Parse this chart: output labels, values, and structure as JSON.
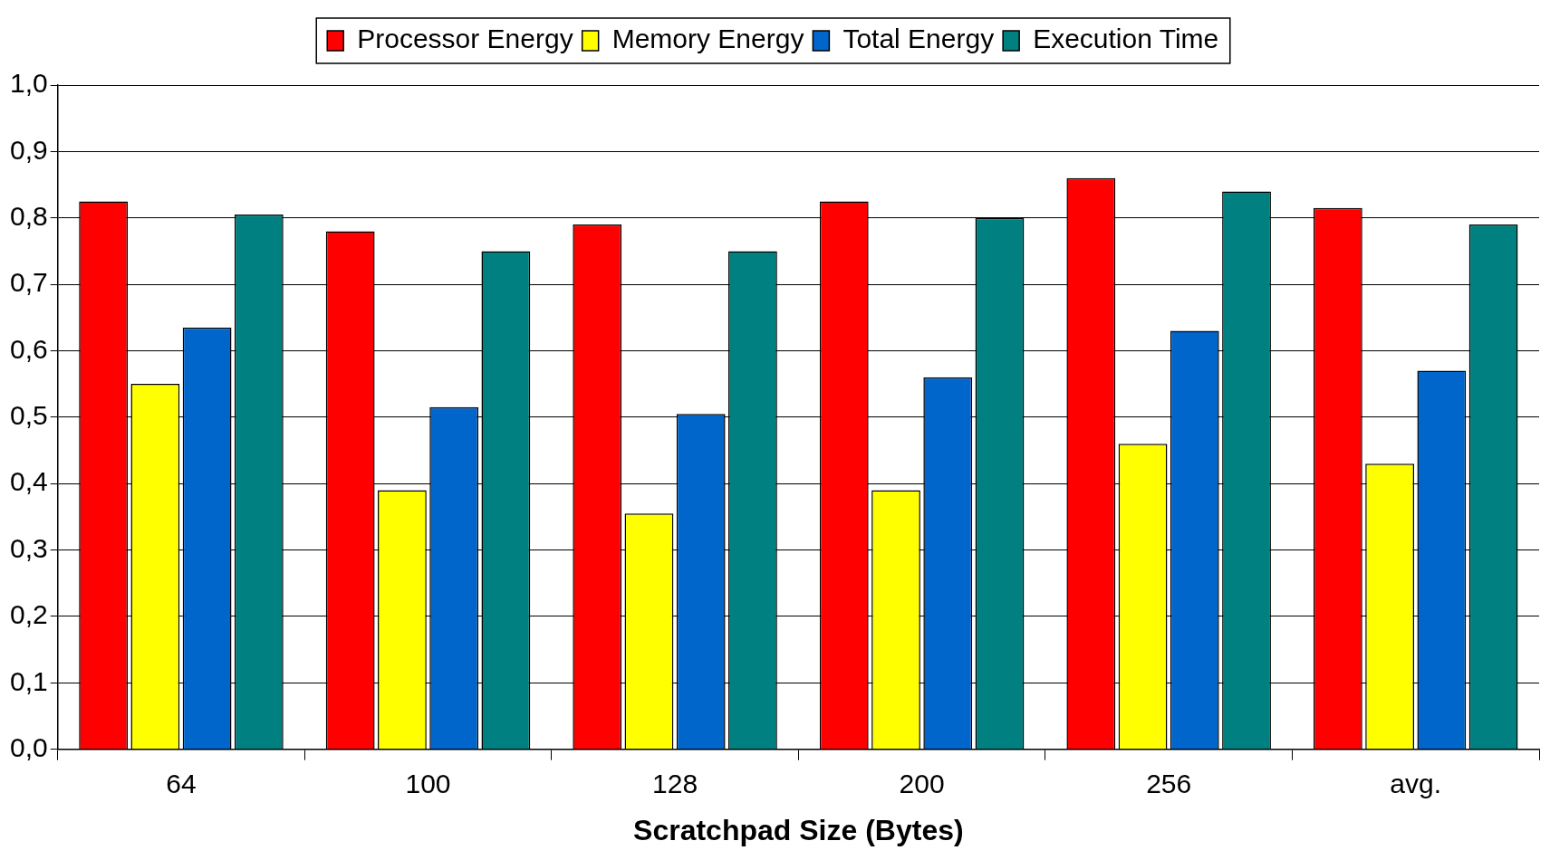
{
  "chart_data": {
    "type": "bar",
    "xlabel": "Scratchpad Size (Bytes)",
    "categories": [
      "64",
      "100",
      "128",
      "200",
      "256",
      "avg."
    ],
    "series": [
      {
        "name": "Processor Energy",
        "color": "#ff0000",
        "values": [
          0.825,
          0.78,
          0.79,
          0.825,
          0.86,
          0.815
        ]
      },
      {
        "name": "Memory Energy",
        "color": "#ffff00",
        "values": [
          0.55,
          0.39,
          0.355,
          0.39,
          0.46,
          0.43
        ]
      },
      {
        "name": "Total Energy",
        "color": "#0066cc",
        "values": [
          0.635,
          0.515,
          0.505,
          0.56,
          0.63,
          0.57
        ]
      },
      {
        "name": "Execution Time",
        "color": "#008080",
        "values": [
          0.805,
          0.75,
          0.75,
          0.8,
          0.84,
          0.79
        ]
      }
    ],
    "ylim": [
      0,
      1
    ],
    "yticks": [
      {
        "value": 0,
        "label": "0,0"
      },
      {
        "value": 0.1,
        "label": "0,1"
      },
      {
        "value": 0.2,
        "label": "0,2"
      },
      {
        "value": 0.3,
        "label": "0,3"
      },
      {
        "value": 0.4,
        "label": "0,4"
      },
      {
        "value": 0.5,
        "label": "0,5"
      },
      {
        "value": 0.6,
        "label": "0,6"
      },
      {
        "value": 0.7,
        "label": "0,7"
      },
      {
        "value": 0.8,
        "label": "0,8"
      },
      {
        "value": 0.9,
        "label": "0,9"
      },
      {
        "value": 1,
        "label": "1,0"
      }
    ],
    "grid": "y",
    "legend": "top"
  }
}
